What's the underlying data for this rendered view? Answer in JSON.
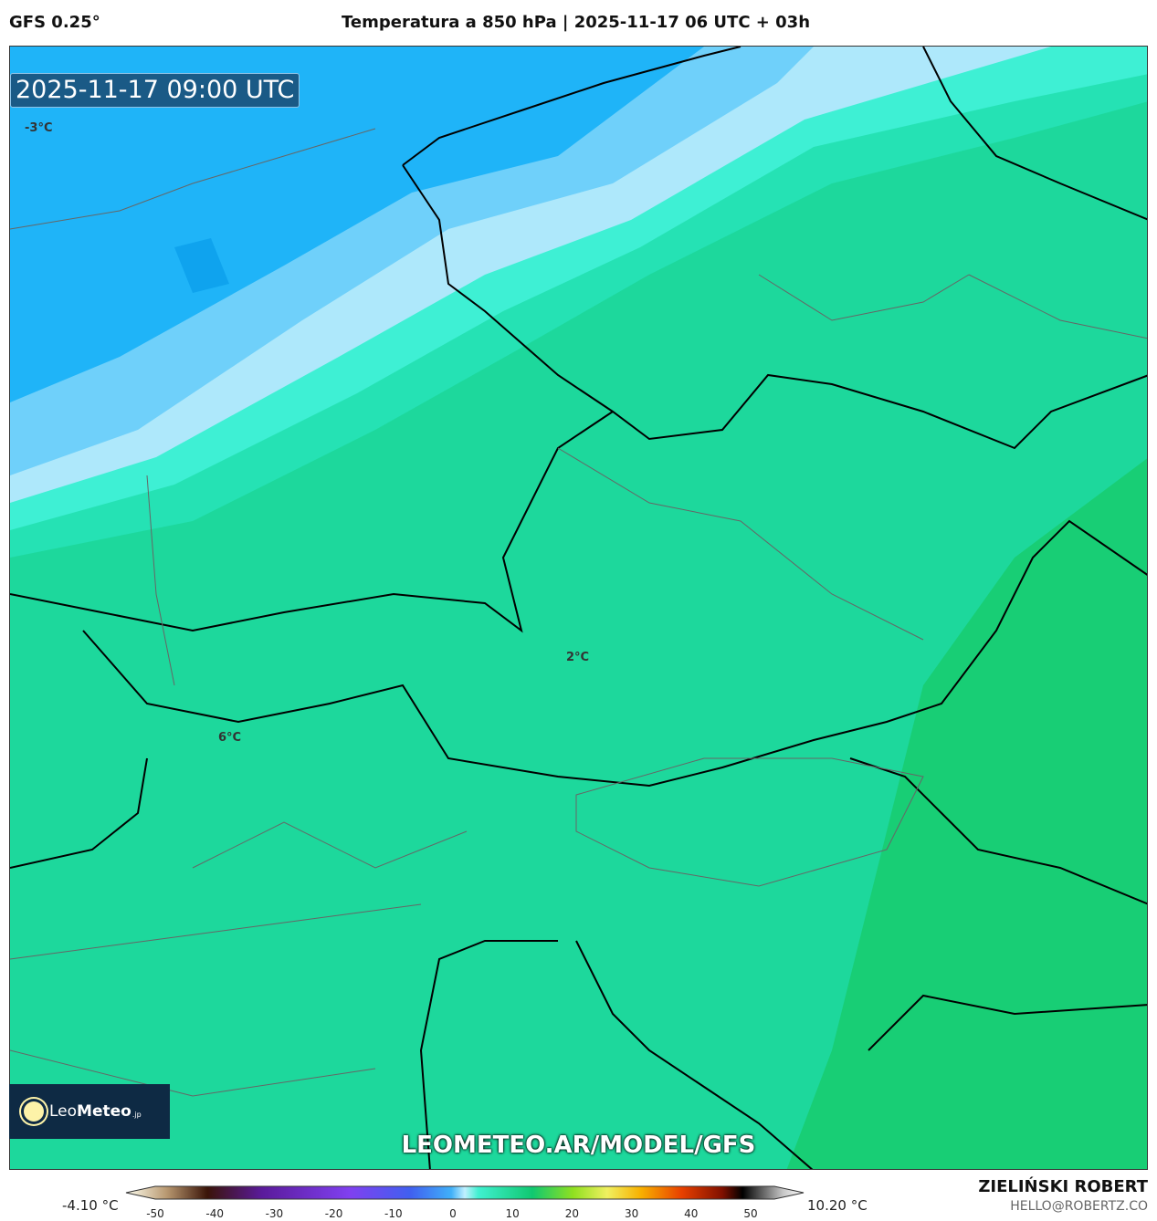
{
  "header": {
    "model": "GFS 0.25°",
    "title": "Temperatura a 850 hPa | 2025-11-17 06 UTC + 03h"
  },
  "map": {
    "valid_time": "2025-11-17 09:00 UTC",
    "labels": [
      "-3°C",
      "2°C",
      "6°C"
    ],
    "watermark": "LEOMETEO.AR/MODEL/GFS",
    "logo": {
      "name_light": "Leo",
      "name_bold": "Meteo",
      "suffix": ".jp"
    },
    "colors": {
      "cold": "#1fb4f8",
      "cool": "#6fd0fa",
      "pale": "#aee8fb",
      "cyan": "#3ef0d4",
      "aqua": "#25e2b4",
      "green": "#1dd89c",
      "warm": "#18cd6e"
    }
  },
  "colorbar": {
    "min_label": "-4.10 °C",
    "max_label": "10.20 °C",
    "ticks": [
      "-50",
      "-40",
      "-30",
      "-20",
      "-10",
      "0",
      "10",
      "20",
      "30",
      "40",
      "50"
    ],
    "range": [
      -50,
      50
    ]
  },
  "credit": {
    "author": "ZIELIŃSKI ROBERT",
    "email": "HELLO@ROBERTZ.CO"
  }
}
